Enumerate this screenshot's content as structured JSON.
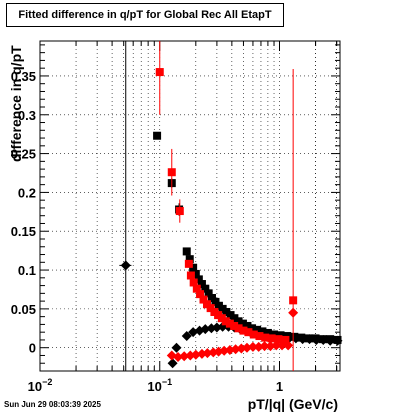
{
  "title": "Fitted difference in q/pT for Global Rec All EtapT",
  "timestamp": "Sun Jun 29 08:03:39 2025",
  "xlabel": "pT/|q| (GeV/c)",
  "ylabel": "difference in q/pT",
  "chart_data": {
    "type": "scatter",
    "xscale": "log",
    "xlim": [
      0.01,
      3.2
    ],
    "ylim": [
      -0.03,
      0.395
    ],
    "grid": true,
    "x_ticks": [
      {
        "value": 0.01,
        "base": "10",
        "exp": "−2"
      },
      {
        "value": 0.1,
        "base": "10",
        "exp": "−1"
      },
      {
        "value": 1,
        "base": "1",
        "exp": ""
      }
    ],
    "y_ticks": [
      {
        "value": 0,
        "label": "0"
      },
      {
        "value": 0.05,
        "label": "0.05"
      },
      {
        "value": 0.1,
        "label": "0.1"
      },
      {
        "value": 0.15,
        "label": "0.15"
      },
      {
        "value": 0.2,
        "label": "0.2"
      },
      {
        "value": 0.25,
        "label": "0.25"
      },
      {
        "value": 0.3,
        "label": "0.3"
      },
      {
        "value": 0.35,
        "label": "0.35"
      }
    ],
    "series": [
      {
        "color": "#000000",
        "marker": "square",
        "points": [
          {
            "x": 0.095,
            "y": 0.273,
            "xerr": 0.005,
            "yerr": 0.004
          },
          {
            "x": 0.126,
            "y": 0.212,
            "xerr": 0.006,
            "yerr": 0.006
          },
          {
            "x": 0.145,
            "y": 0.178,
            "xerr": 0.006,
            "yerr": 0.008
          },
          {
            "x": 0.168,
            "y": 0.124,
            "xerr": 0.005,
            "yerr": 0.004
          },
          {
            "x": 0.178,
            "y": 0.114
          },
          {
            "x": 0.19,
            "y": 0.103
          },
          {
            "x": 0.2,
            "y": 0.095
          },
          {
            "x": 0.212,
            "y": 0.088
          },
          {
            "x": 0.225,
            "y": 0.082
          },
          {
            "x": 0.24,
            "y": 0.076
          },
          {
            "x": 0.256,
            "y": 0.07
          },
          {
            "x": 0.273,
            "y": 0.064
          },
          {
            "x": 0.292,
            "y": 0.059
          },
          {
            "x": 0.312,
            "y": 0.054
          },
          {
            "x": 0.335,
            "y": 0.05
          },
          {
            "x": 0.36,
            "y": 0.046
          },
          {
            "x": 0.39,
            "y": 0.042
          },
          {
            "x": 0.42,
            "y": 0.038
          },
          {
            "x": 0.455,
            "y": 0.034
          },
          {
            "x": 0.495,
            "y": 0.031
          },
          {
            "x": 0.54,
            "y": 0.028
          },
          {
            "x": 0.59,
            "y": 0.025
          },
          {
            "x": 0.65,
            "y": 0.023
          },
          {
            "x": 0.72,
            "y": 0.021
          },
          {
            "x": 0.8,
            "y": 0.019
          },
          {
            "x": 0.9,
            "y": 0.017
          },
          {
            "x": 1.02,
            "y": 0.016
          },
          {
            "x": 1.16,
            "y": 0.015
          },
          {
            "x": 1.33,
            "y": 0.014
          },
          {
            "x": 1.52,
            "y": 0.013
          },
          {
            "x": 1.75,
            "y": 0.012
          },
          {
            "x": 2.0,
            "y": 0.012
          },
          {
            "x": 2.3,
            "y": 0.011
          },
          {
            "x": 2.65,
            "y": 0.011
          },
          {
            "x": 3.05,
            "y": 0.01
          }
        ]
      },
      {
        "color": "#000000",
        "marker": "diamond",
        "points": [
          {
            "x": 0.052,
            "y": 0.106,
            "xerr": 0.006,
            "yerr": 0.35
          },
          {
            "x": 0.128,
            "y": -0.02,
            "xerr": 0.006
          },
          {
            "x": 0.138,
            "y": 0.0
          },
          {
            "x": 0.168,
            "y": 0.015
          },
          {
            "x": 0.19,
            "y": 0.02
          },
          {
            "x": 0.215,
            "y": 0.022
          },
          {
            "x": 0.24,
            "y": 0.024
          },
          {
            "x": 0.27,
            "y": 0.025
          },
          {
            "x": 0.3,
            "y": 0.026
          },
          {
            "x": 0.335,
            "y": 0.027
          },
          {
            "x": 0.375,
            "y": 0.027
          },
          {
            "x": 0.42,
            "y": 0.026
          },
          {
            "x": 0.47,
            "y": 0.024
          },
          {
            "x": 0.52,
            "y": 0.022
          },
          {
            "x": 0.58,
            "y": 0.019
          },
          {
            "x": 0.65,
            "y": 0.017
          },
          {
            "x": 0.73,
            "y": 0.016
          },
          {
            "x": 0.82,
            "y": 0.015
          },
          {
            "x": 0.93,
            "y": 0.014
          },
          {
            "x": 1.05,
            "y": 0.013
          },
          {
            "x": 1.2,
            "y": 0.012
          },
          {
            "x": 1.37,
            "y": 0.012
          },
          {
            "x": 1.56,
            "y": 0.011
          },
          {
            "x": 1.78,
            "y": 0.011
          },
          {
            "x": 2.03,
            "y": 0.01
          },
          {
            "x": 2.32,
            "y": 0.01
          },
          {
            "x": 2.65,
            "y": 0.009
          },
          {
            "x": 3.05,
            "y": 0.009
          }
        ]
      },
      {
        "color": "#ff0000",
        "marker": "square",
        "points": [
          {
            "x": 0.1,
            "y": 0.355,
            "xerr": 0.004,
            "yerr": 0.055
          },
          {
            "x": 0.126,
            "y": 0.226,
            "xerr": 0.005,
            "yerr": 0.03
          },
          {
            "x": 0.147,
            "y": 0.176,
            "xerr": 0.005,
            "yerr": 0.015
          },
          {
            "x": 0.175,
            "y": 0.108
          },
          {
            "x": 0.182,
            "y": 0.093
          },
          {
            "x": 0.192,
            "y": 0.084
          },
          {
            "x": 0.204,
            "y": 0.076
          },
          {
            "x": 0.217,
            "y": 0.069
          },
          {
            "x": 0.232,
            "y": 0.062
          },
          {
            "x": 0.248,
            "y": 0.056
          },
          {
            "x": 0.266,
            "y": 0.051
          },
          {
            "x": 0.286,
            "y": 0.046
          },
          {
            "x": 0.307,
            "y": 0.042
          },
          {
            "x": 0.33,
            "y": 0.038
          },
          {
            "x": 0.356,
            "y": 0.034
          },
          {
            "x": 0.385,
            "y": 0.031
          },
          {
            "x": 0.418,
            "y": 0.028
          },
          {
            "x": 0.455,
            "y": 0.025
          },
          {
            "x": 0.5,
            "y": 0.022
          },
          {
            "x": 0.55,
            "y": 0.02
          },
          {
            "x": 0.61,
            "y": 0.017
          },
          {
            "x": 0.68,
            "y": 0.015
          },
          {
            "x": 0.76,
            "y": 0.013
          },
          {
            "x": 0.86,
            "y": 0.012
          },
          {
            "x": 0.98,
            "y": 0.011
          },
          {
            "x": 1.12,
            "y": 0.01
          },
          {
            "x": 1.3,
            "y": 0.061,
            "xerr": 0.04,
            "yerr": 0.298
          }
        ]
      },
      {
        "color": "#ff0000",
        "marker": "diamond",
        "points": [
          {
            "x": 0.126,
            "y": -0.01
          },
          {
            "x": 0.142,
            "y": -0.012
          },
          {
            "x": 0.16,
            "y": -0.011
          },
          {
            "x": 0.18,
            "y": -0.01
          },
          {
            "x": 0.2,
            "y": -0.009
          },
          {
            "x": 0.225,
            "y": -0.008
          },
          {
            "x": 0.25,
            "y": -0.007
          },
          {
            "x": 0.28,
            "y": -0.006
          },
          {
            "x": 0.31,
            "y": -0.005
          },
          {
            "x": 0.345,
            "y": -0.004
          },
          {
            "x": 0.385,
            "y": -0.003
          },
          {
            "x": 0.43,
            "y": -0.002
          },
          {
            "x": 0.48,
            "y": -0.001
          },
          {
            "x": 0.535,
            "y": 0.0
          },
          {
            "x": 0.6,
            "y": 0.001
          },
          {
            "x": 0.67,
            "y": 0.001
          },
          {
            "x": 0.75,
            "y": 0.002
          },
          {
            "x": 0.84,
            "y": 0.002
          },
          {
            "x": 0.94,
            "y": 0.003
          },
          {
            "x": 1.05,
            "y": 0.003
          },
          {
            "x": 1.18,
            "y": 0.003
          },
          {
            "x": 1.3,
            "y": 0.045
          }
        ]
      }
    ]
  }
}
